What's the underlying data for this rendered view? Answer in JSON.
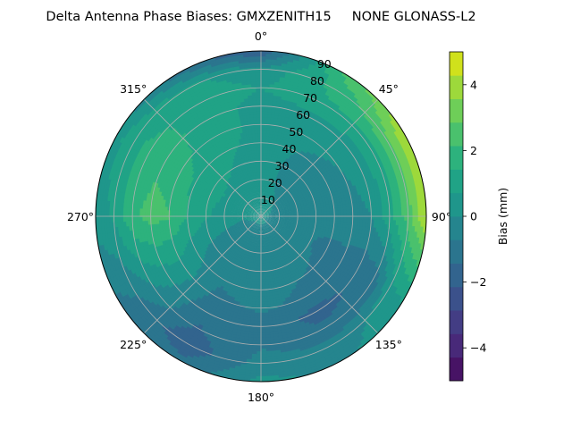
{
  "chart_data": {
    "type": "heatmap",
    "projection": "polar",
    "title": "Delta Antenna Phase Biases: GMXZENITH15     NONE GLONASS-L2",
    "theta_direction": "clockwise",
    "theta_zero": "top",
    "theta_ticks": [
      {
        "angle": 0,
        "label": "0°"
      },
      {
        "angle": 45,
        "label": "45°"
      },
      {
        "angle": 90,
        "label": "90°"
      },
      {
        "angle": 135,
        "label": "135°"
      },
      {
        "angle": 180,
        "label": "180°"
      },
      {
        "angle": 225,
        "label": "225°"
      },
      {
        "angle": 270,
        "label": "270°"
      },
      {
        "angle": 315,
        "label": "315°"
      }
    ],
    "radial_ticks": [
      {
        "value": 10,
        "label": "10"
      },
      {
        "value": 20,
        "label": "20"
      },
      {
        "value": 30,
        "label": "30"
      },
      {
        "value": 40,
        "label": "40"
      },
      {
        "value": 50,
        "label": "50"
      },
      {
        "value": 60,
        "label": "60"
      },
      {
        "value": 70,
        "label": "70"
      },
      {
        "value": 80,
        "label": "80"
      },
      {
        "value": 90,
        "label": "90"
      }
    ],
    "rlim": [
      0,
      90
    ],
    "grid": true,
    "colorbar": {
      "label": "Bias (mm)",
      "range": [
        -5,
        5
      ],
      "ticks": [
        {
          "value": -4,
          "label": "−4"
        },
        {
          "value": -2,
          "label": "−2"
        },
        {
          "value": 0,
          "label": "0"
        },
        {
          "value": 2,
          "label": "2"
        },
        {
          "value": 4,
          "label": "4"
        }
      ],
      "levels": [
        -5,
        -4.2857,
        -3.5714,
        -2.8571,
        -2.1429,
        -1.4286,
        -0.7143,
        0,
        0.7143,
        1.4286,
        2.1429,
        2.8571,
        3.5714,
        4.2857,
        5
      ],
      "colors": [
        "#471365",
        "#482979",
        "#433d84",
        "#3b518b",
        "#32648e",
        "#2b758e",
        "#25858e",
        "#1f968b",
        "#20a386",
        "#2db27d",
        "#4ac16d",
        "#6ece58",
        "#9dd93b",
        "#d0e11c"
      ],
      "placement": "right"
    },
    "grid_zenith": [
      0,
      10,
      20,
      30,
      40,
      50,
      60,
      70,
      80,
      90
    ],
    "grid_azimuth": [
      0,
      30,
      60,
      90,
      120,
      150,
      180,
      210,
      240,
      270,
      300,
      330
    ],
    "values": [
      [
        0.2,
        0.2,
        0.2,
        0.2,
        0.2,
        0.2,
        0.2,
        0.2,
        0.2,
        0.2,
        0.2,
        0.2
      ],
      [
        0.3,
        0.1,
        -0.1,
        -0.3,
        -0.4,
        -0.3,
        -0.2,
        -0.3,
        -0.2,
        0.1,
        0.3,
        0.3
      ],
      [
        0.3,
        -0.1,
        -0.4,
        -0.6,
        -0.6,
        -0.5,
        -0.4,
        -0.4,
        -0.2,
        0.4,
        0.6,
        0.5
      ],
      [
        0.5,
        -0.2,
        -0.6,
        -0.7,
        -0.7,
        -0.6,
        -0.5,
        -0.5,
        -0.1,
        0.8,
        1.0,
        0.7
      ],
      [
        0.6,
        0.0,
        -0.4,
        -0.6,
        -0.8,
        -0.7,
        -0.4,
        -0.6,
        0.2,
        1.4,
        1.3,
        0.8
      ],
      [
        0.6,
        0.3,
        0.0,
        -0.2,
        -1.0,
        -0.9,
        -0.6,
        -0.9,
        0.6,
        2.2,
        1.8,
        0.9
      ],
      [
        0.5,
        0.5,
        0.3,
        0.0,
        -1.2,
        -1.7,
        -1.0,
        -1.3,
        0.5,
        2.4,
        2.0,
        1.0
      ],
      [
        0.7,
        1.3,
        1.2,
        1.2,
        -1.2,
        -1.3,
        -0.8,
        -1.5,
        0.1,
        2.0,
        1.6,
        1.2
      ],
      [
        0.2,
        1.6,
        2.8,
        2.5,
        0.5,
        -0.5,
        -0.4,
        -2.0,
        -0.6,
        0.8,
        1.3,
        0.9
      ],
      [
        -2.2,
        2.2,
        4.2,
        4.4,
        0.8,
        -0.2,
        0.2,
        -1.2,
        -0.8,
        0.3,
        0.4,
        -1.0
      ]
    ]
  }
}
